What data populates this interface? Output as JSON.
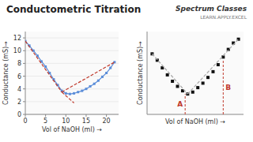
{
  "chart_data": [
    {
      "type": "line",
      "title": "Conductometric Titration",
      "annotations": [
        {
          "text": "Spectrum Classes"
        },
        {
          "text": "LEARN.APPLY.EXCEL"
        }
      ],
      "xlabel": "Vol of NaOH (ml) →",
      "ylabel": "Conductance (mS)→",
      "xlim": [
        0,
        23
      ],
      "ylim": [
        0,
        13
      ],
      "xticks": [
        0,
        5,
        10,
        15,
        20
      ],
      "yticks": [
        0,
        2,
        4,
        6,
        8,
        10,
        12
      ],
      "grid": "y",
      "series": [
        {
          "x": [
            0,
            1,
            2,
            3,
            4,
            5,
            6,
            7,
            8,
            9,
            10,
            11,
            12,
            13,
            14,
            15,
            16,
            17,
            18,
            19,
            20,
            21,
            22
          ],
          "values": [
            11.5,
            10.8,
            10.0,
            9.2,
            8.3,
            7.5,
            6.5,
            5.5,
            4.6,
            3.7,
            3.3,
            3.2,
            3.3,
            3.5,
            3.7,
            4.0,
            4.4,
            4.8,
            5.3,
            5.9,
            6.5,
            7.3,
            8.2
          ],
          "color": "#5b8dd9",
          "marker": "square",
          "line_style": "solid"
        },
        {
          "x": [
            0,
            9
          ],
          "values": [
            11.5,
            3.5
          ],
          "color": "#c0392b",
          "line_style": "dashed"
        },
        {
          "x": [
            9,
            22
          ],
          "values": [
            3.5,
            8.2
          ],
          "color": "#c0392b",
          "line_style": "dashed"
        },
        {
          "x": [
            9,
            12
          ],
          "values": [
            3.5,
            1.8
          ],
          "color": "#c0392b",
          "line_style": "dashed"
        }
      ]
    },
    {
      "type": "scatter",
      "xlabel": "Vol of NaOH (ml) →",
      "ylabel": "Conductance (mS)→",
      "xlim": [
        0,
        19
      ],
      "ylim": [
        0,
        13
      ],
      "tick_labels": false,
      "annotations": [
        {
          "text": "A",
          "x": 7.5,
          "y": 3.2,
          "color": "#c0392b"
        },
        {
          "text": "B",
          "x": 15,
          "y": 8.5,
          "color": "#c0392b"
        }
      ],
      "series": [
        {
          "type": "scatter",
          "x": [
            1,
            2,
            3,
            4,
            5,
            6,
            7,
            8,
            9,
            10,
            11,
            12,
            13,
            14,
            15,
            16,
            17,
            18
          ],
          "values": [
            9.5,
            8.5,
            7.3,
            6.2,
            5.2,
            4.4,
            3.7,
            3.2,
            3.5,
            4.2,
            4.9,
            5.8,
            6.7,
            7.8,
            9.0,
            10.2,
            11.2,
            11.8
          ],
          "color": "#111111",
          "marker": "square"
        },
        {
          "type": "line",
          "x": [
            1,
            8
          ],
          "values": [
            9.5,
            3.2
          ],
          "color": "#aaaaaa",
          "line_style": "dashed"
        },
        {
          "type": "line",
          "x": [
            8,
            18
          ],
          "values": [
            3.2,
            11.8
          ],
          "color": "#aaaaaa",
          "line_style": "dashed"
        }
      ]
    }
  ]
}
